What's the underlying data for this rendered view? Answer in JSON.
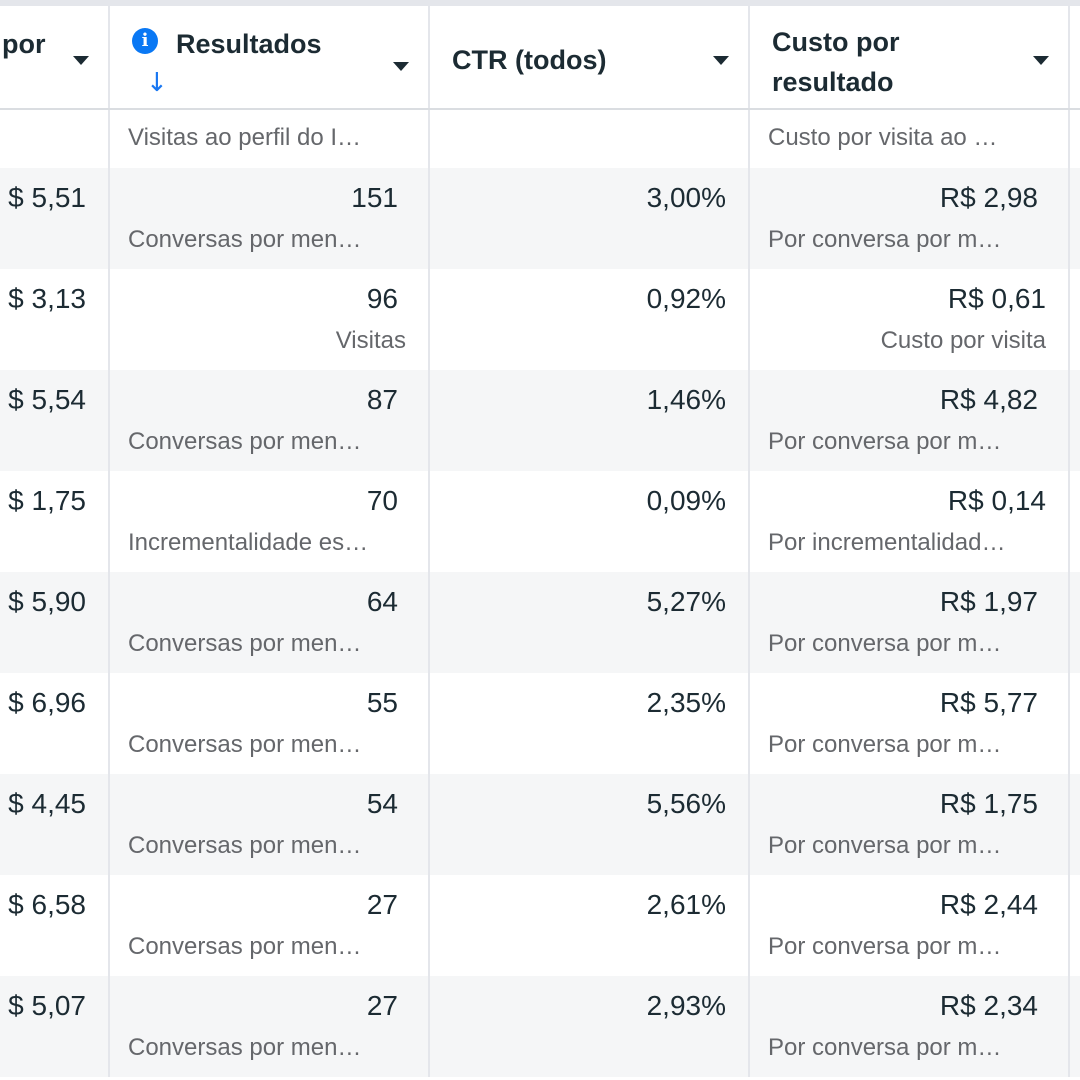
{
  "header": {
    "col0_label": "por",
    "col1_label": "Resultados",
    "col2_label": "CTR (todos)",
    "col3_label": "Custo por resultado",
    "info_icon": "i",
    "sort_icon": "↓"
  },
  "partial_row": {
    "resultados_sub": "Visitas ao perfil do I…",
    "custo_sub": "Custo por visita ao …"
  },
  "rows": [
    {
      "col0": "$ 5,51",
      "resultados": "151",
      "resultados_sub": "Conversas por men…",
      "ctr": "3,00%",
      "custo": "R$ 2,98",
      "custo_sub": "Por conversa por m…"
    },
    {
      "col0": "$ 3,13",
      "resultados": "96",
      "resultados_sub": "Visitas",
      "ctr": "0,92%",
      "custo": "R$ 0,61",
      "custo_sub": "Custo por visita"
    },
    {
      "col0": "$ 5,54",
      "resultados": "87",
      "resultados_sub": "Conversas por men…",
      "ctr": "1,46%",
      "custo": "R$ 4,82",
      "custo_sub": "Por conversa por m…"
    },
    {
      "col0": "$ 1,75",
      "resultados": "70",
      "resultados_sub": "Incrementalidade es…",
      "ctr": "0,09%",
      "custo": "R$ 0,14",
      "custo_sub": "Por incrementalidad…"
    },
    {
      "col0": "$ 5,90",
      "resultados": "64",
      "resultados_sub": "Conversas por men…",
      "ctr": "5,27%",
      "custo": "R$ 1,97",
      "custo_sub": "Por conversa por m…"
    },
    {
      "col0": "$ 6,96",
      "resultados": "55",
      "resultados_sub": "Conversas por men…",
      "ctr": "2,35%",
      "custo": "R$ 5,77",
      "custo_sub": "Por conversa por m…"
    },
    {
      "col0": "$ 4,45",
      "resultados": "54",
      "resultados_sub": "Conversas por men…",
      "ctr": "5,56%",
      "custo": "R$ 1,75",
      "custo_sub": "Por conversa por m…"
    },
    {
      "col0": "$ 6,58",
      "resultados": "27",
      "resultados_sub": "Conversas por men…",
      "ctr": "2,61%",
      "custo": "R$ 2,44",
      "custo_sub": "Por conversa por m…"
    },
    {
      "col0": "$ 5,07",
      "resultados": "27",
      "resultados_sub": "Conversas por men…",
      "ctr": "2,93%",
      "custo": "R$ 2,34",
      "custo_sub": "Por conversa por m…"
    }
  ]
}
